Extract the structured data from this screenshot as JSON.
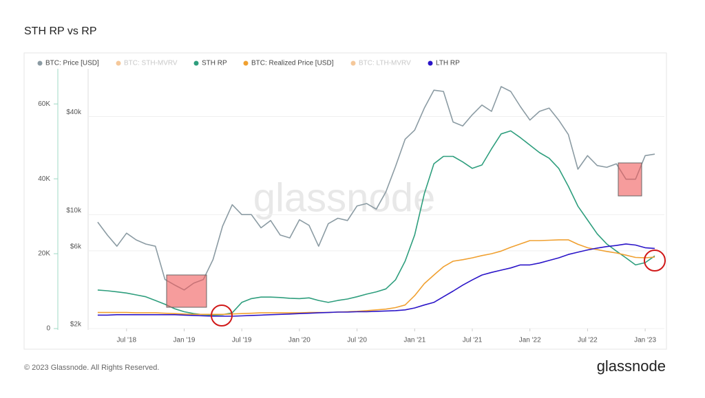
{
  "chart_data": {
    "type": "line",
    "title": "STH RP vs RP",
    "watermark": "glassnode",
    "x": [
      "2018-04",
      "2018-05",
      "2018-06",
      "2018-07",
      "2018-08",
      "2018-09",
      "2018-10",
      "2018-11",
      "2018-12",
      "2019-01",
      "2019-02",
      "2019-03",
      "2019-04",
      "2019-05",
      "2019-06",
      "2019-07",
      "2019-08",
      "2019-09",
      "2019-10",
      "2019-11",
      "2019-12",
      "2020-01",
      "2020-02",
      "2020-03",
      "2020-04",
      "2020-05",
      "2020-06",
      "2020-07",
      "2020-08",
      "2020-09",
      "2020-10",
      "2020-11",
      "2020-12",
      "2021-01",
      "2021-02",
      "2021-03",
      "2021-04",
      "2021-05",
      "2021-06",
      "2021-07",
      "2021-08",
      "2021-09",
      "2021-10",
      "2021-11",
      "2021-12",
      "2022-01",
      "2022-02",
      "2022-03",
      "2022-04",
      "2022-05",
      "2022-06",
      "2022-07",
      "2022-08",
      "2022-09",
      "2022-10",
      "2022-11",
      "2022-12",
      "2023-01",
      "2023-02"
    ],
    "xlim": [
      "2018-03",
      "2023-03"
    ],
    "xticks": [
      {
        "value": "2018-07",
        "label": "Jul '18"
      },
      {
        "value": "2019-01",
        "label": "Jan '19"
      },
      {
        "value": "2019-07",
        "label": "Jul '19"
      },
      {
        "value": "2020-01",
        "label": "Jan '20"
      },
      {
        "value": "2020-07",
        "label": "Jul '20"
      },
      {
        "value": "2021-01",
        "label": "Jan '21"
      },
      {
        "value": "2021-07",
        "label": "Jul '21"
      },
      {
        "value": "2022-01",
        "label": "Jan '22"
      },
      {
        "value": "2022-07",
        "label": "Jul '22"
      },
      {
        "value": "2023-01",
        "label": "Jan '23"
      }
    ],
    "ylim": [
      0,
      69400
    ],
    "yticks": [
      0,
      {
        "value": 20000,
        "label": "20K"
      },
      {
        "value": 40000,
        "label": "40K"
      },
      {
        "value": 60000,
        "label": "60K"
      }
    ],
    "y2lim": [
      2000,
      78500
    ],
    "y2log": true,
    "y2ticks": [
      {
        "value": 2000,
        "label": "$2k"
      },
      {
        "value": 6000,
        "label": "$6k"
      },
      {
        "value": 10000,
        "label": "$10k"
      },
      {
        "value": 40000,
        "label": "$40k"
      }
    ],
    "grid": true,
    "series": [
      {
        "name": "BTC: Price [USD]",
        "color": "#8b9ba3",
        "axis": "y2",
        "values": [
          9000,
          7500,
          6400,
          7700,
          7000,
          6600,
          6400,
          4000,
          3700,
          3450,
          3800,
          4000,
          5300,
          8500,
          11500,
          10000,
          10000,
          8300,
          9200,
          7500,
          7200,
          9300,
          8600,
          6400,
          8800,
          9500,
          9200,
          11300,
          11700,
          10800,
          13800,
          19700,
          29000,
          33000,
          45000,
          58000,
          57000,
          37000,
          35000,
          41000,
          47000,
          43000,
          61000,
          57000,
          46000,
          38000,
          43000,
          45000,
          38000,
          31000,
          19000,
          23000,
          20000,
          19500,
          20500,
          16500,
          16500,
          23000,
          23500
        ]
      },
      {
        "name": "BTC: STH-MVRV",
        "color": "#f5c89a",
        "hidden": true
      },
      {
        "name": "STH RP",
        "color": "#2e9e7d",
        "values": [
          10300,
          10100,
          9800,
          9500,
          9000,
          8500,
          7500,
          6500,
          5300,
          4500,
          4000,
          3700,
          3600,
          3700,
          4200,
          7000,
          8000,
          8400,
          8400,
          8300,
          8100,
          8000,
          8200,
          7500,
          7000,
          7500,
          7900,
          8500,
          9200,
          9800,
          10600,
          13000,
          18000,
          25000,
          36000,
          44000,
          46000,
          46000,
          44500,
          42800,
          43700,
          48000,
          52000,
          52800,
          51000,
          49000,
          47000,
          45500,
          42800,
          38000,
          32700,
          29000,
          25300,
          22600,
          20700,
          18900,
          17000,
          17600,
          19400
        ]
      },
      {
        "name": "BTC: Realized Price [USD]",
        "color": "#f0a030",
        "values": [
          4300,
          4300,
          4300,
          4300,
          4200,
          4200,
          4200,
          4100,
          4000,
          3900,
          3800,
          3800,
          3800,
          3800,
          3900,
          4000,
          4100,
          4200,
          4200,
          4200,
          4200,
          4200,
          4300,
          4300,
          4300,
          4400,
          4500,
          4600,
          4800,
          5000,
          5200,
          5600,
          6300,
          8800,
          12000,
          14300,
          16500,
          18000,
          18400,
          18900,
          19500,
          20000,
          20700,
          21700,
          22600,
          23500,
          23500,
          23600,
          23700,
          23700,
          22500,
          21600,
          21100,
          20600,
          20200,
          19600,
          19000,
          18900,
          19100
        ]
      },
      {
        "name": "BTC: LTH-MVRV",
        "color": "#f5c89a",
        "hidden": true
      },
      {
        "name": "LTH RP",
        "color": "#2a14c8",
        "values": [
          3600,
          3600,
          3700,
          3700,
          3700,
          3700,
          3700,
          3700,
          3700,
          3600,
          3500,
          3400,
          3300,
          3300,
          3300,
          3400,
          3500,
          3600,
          3700,
          3800,
          3900,
          4000,
          4100,
          4200,
          4300,
          4400,
          4400,
          4500,
          4500,
          4600,
          4700,
          4800,
          5000,
          5500,
          6300,
          7000,
          8500,
          10000,
          11600,
          13000,
          14300,
          15000,
          15600,
          16200,
          17000,
          17000,
          17500,
          18200,
          18900,
          19800,
          20400,
          21000,
          21500,
          21900,
          22200,
          22600,
          22300,
          21600,
          21400
        ]
      }
    ]
  },
  "footer": {
    "copyright": "© 2023 Glassnode. All Rights Reserved.",
    "logo": "glassnode"
  }
}
